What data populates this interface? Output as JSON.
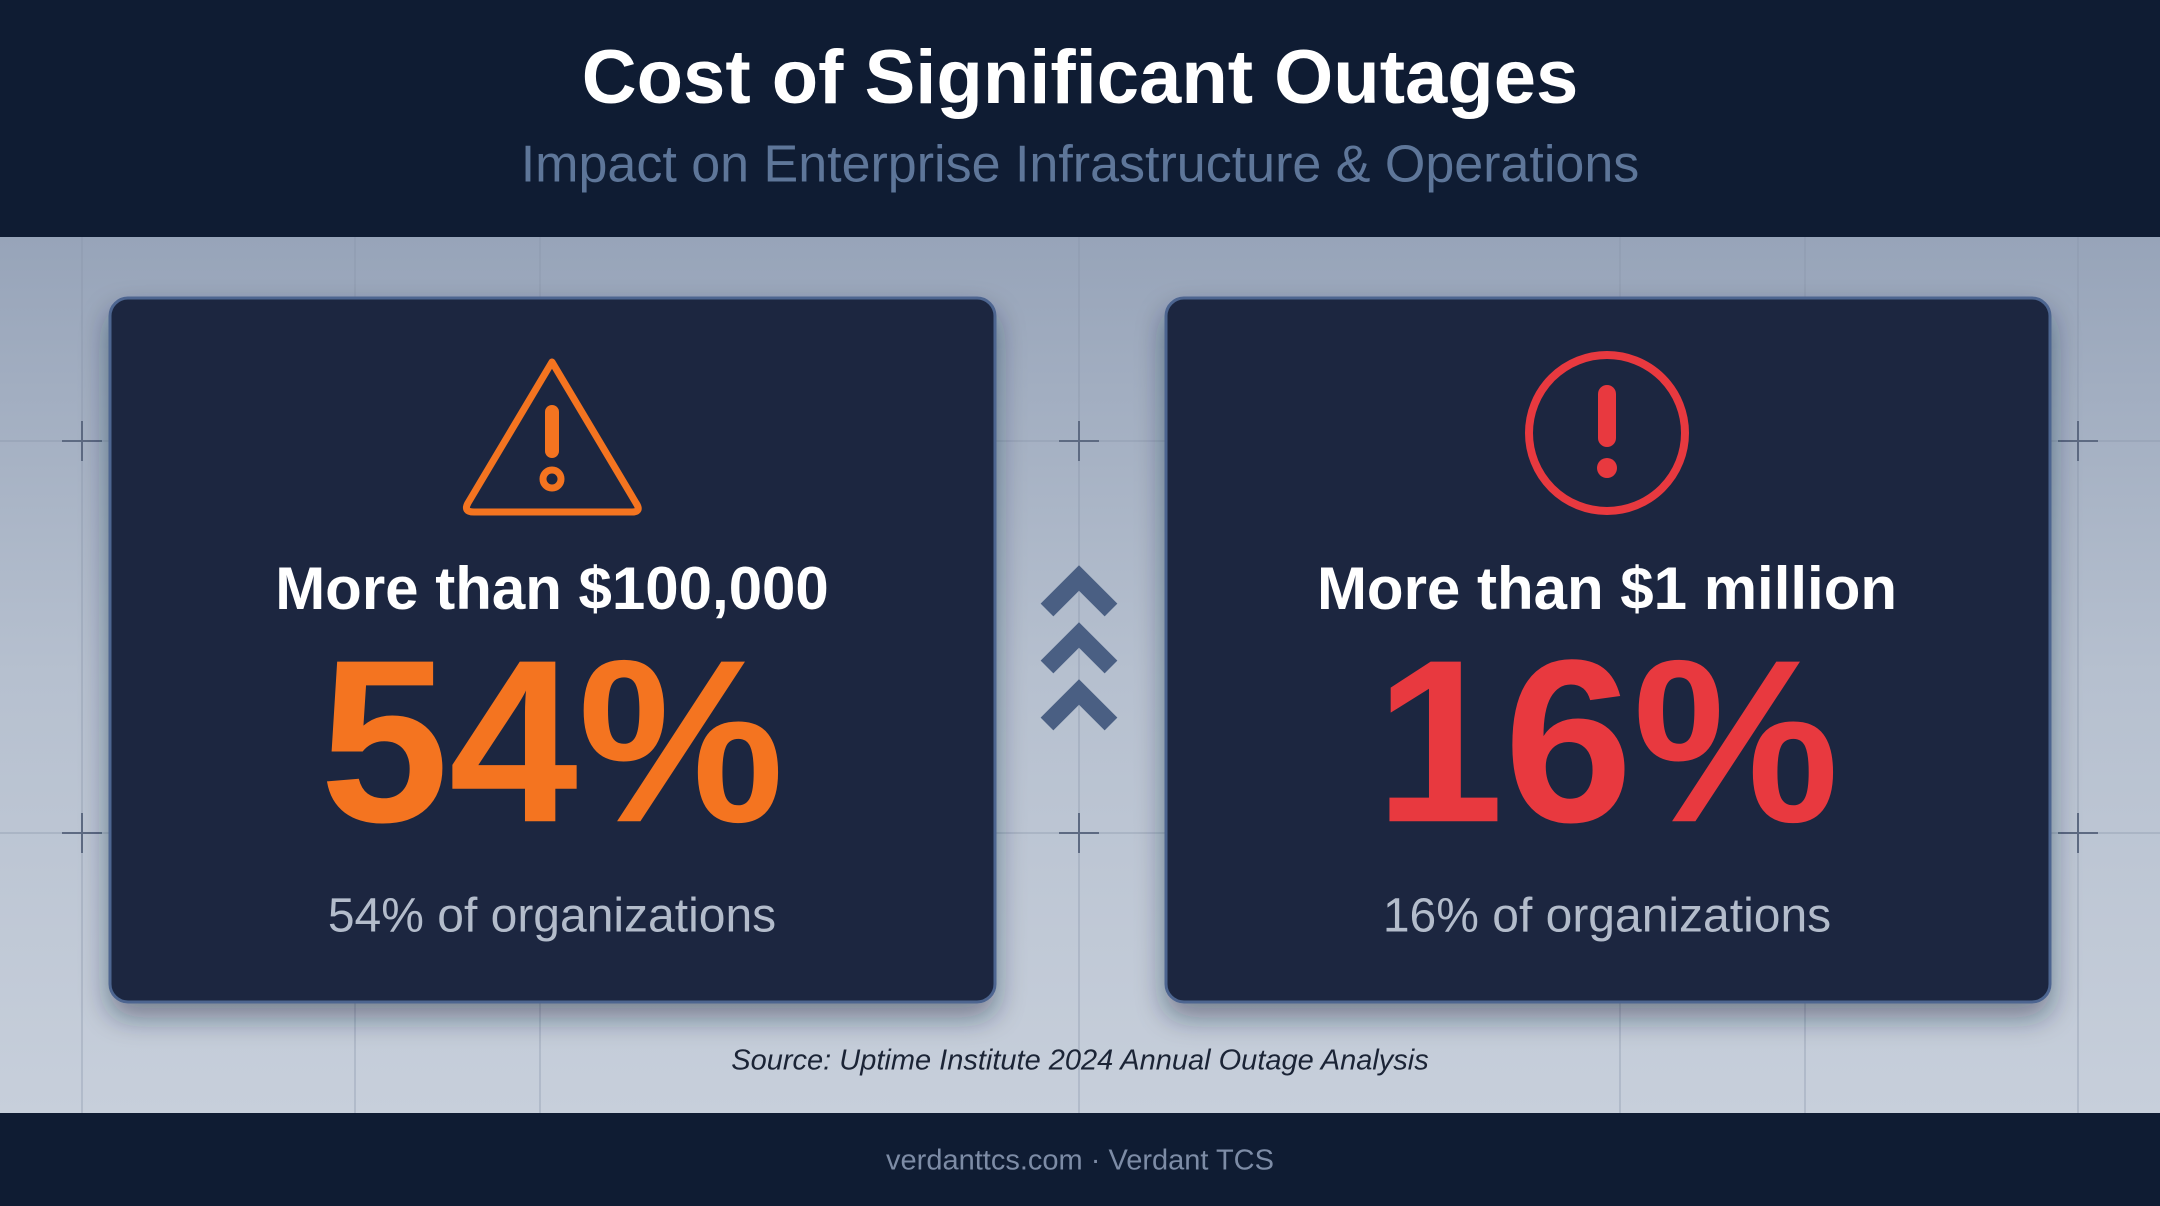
{
  "header": {
    "title": "Cost of Significant Outages",
    "subtitle": "Impact on Enterprise Infrastructure & Operations"
  },
  "cards": [
    {
      "heading": "More than $100,000",
      "value": "54%",
      "caption": "54% of organizations"
    },
    {
      "heading": "More than $1 million",
      "value": "16%",
      "caption": "16% of organizations"
    }
  ],
  "source": "Source: Uptime Institute 2024 Annual Outage Analysis",
  "footer": "verdanttcs.com · Verdant TCS"
}
